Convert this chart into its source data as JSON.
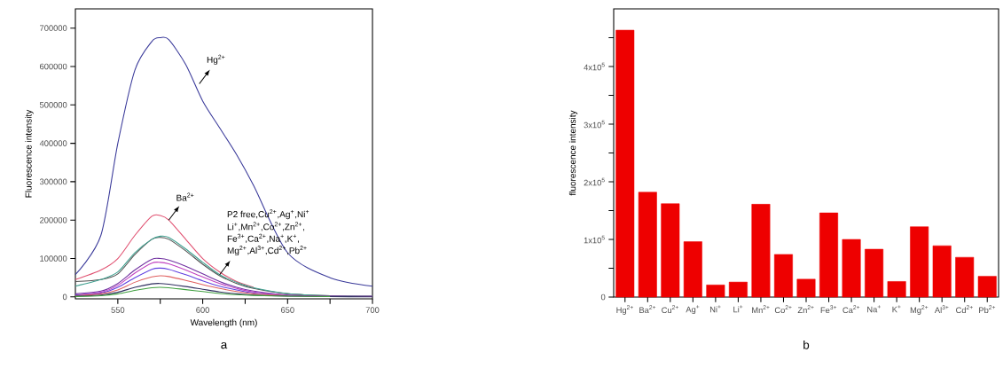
{
  "chart_data": [
    {
      "type": "line",
      "xlabel": "Wavelength (nm)",
      "ylabel": "Fluorescence intensity",
      "x": [
        525,
        540,
        550,
        560,
        570,
        575,
        580,
        590,
        600,
        610,
        620,
        630,
        650,
        675,
        700
      ],
      "xlim": [
        525,
        700
      ],
      "xticks": [
        550,
        {
          "value": 575,
          "label": null
        },
        600,
        {
          "value": 625,
          "label": null
        },
        650,
        {
          "value": 675,
          "label": null
        },
        700
      ],
      "ylim": [
        -5000,
        750000
      ],
      "yticks": [
        0,
        100000,
        200000,
        300000,
        400000,
        500000,
        600000,
        700000
      ],
      "series": [
        {
          "color": "#3a3a9a",
          "values": [
            58000,
            160000,
            400000,
            590000,
            665000,
            675000,
            670000,
            605000,
            510000,
            440000,
            370000,
            290000,
            115000,
            50000,
            28000
          ]
        },
        {
          "color": "#e05070",
          "values": [
            45000,
            70000,
            100000,
            160000,
            210000,
            212000,
            200000,
            150000,
            100000,
            65000,
            40000,
            25000,
            null,
            null,
            null
          ]
        },
        {
          "color": "#505050",
          "values": [
            40000,
            45000,
            60000,
            110000,
            150000,
            155000,
            150000,
            120000,
            85000,
            55000,
            35000,
            22000,
            8000,
            3000,
            2000
          ]
        },
        {
          "color": "#40a090",
          "values": [
            28000,
            45000,
            65000,
            115000,
            150000,
            158000,
            155000,
            125000,
            90000,
            58000,
            38000,
            24000,
            9000,
            3000,
            2000
          ]
        },
        {
          "color": "#7030a0",
          "values": [
            8000,
            15000,
            35000,
            70000,
            98000,
            100000,
            96000,
            80000,
            60000,
            40000,
            25000,
            15000,
            5000,
            2000,
            1000
          ]
        },
        {
          "color": "#c040c0",
          "values": [
            5000,
            12000,
            30000,
            62000,
            88000,
            90000,
            86000,
            70000,
            52000,
            35000,
            22000,
            13000,
            5000,
            2000,
            1000
          ]
        },
        {
          "color": "#6040e0",
          "values": [
            5000,
            10000,
            25000,
            50000,
            72000,
            75000,
            72000,
            58000,
            42000,
            28000,
            18000,
            10000,
            4000,
            null,
            null
          ]
        },
        {
          "color": "#e06060",
          "values": [
            3000,
            8000,
            18000,
            38000,
            52000,
            55000,
            53000,
            43000,
            32000,
            22000,
            14000,
            8000,
            3000,
            null,
            null
          ]
        },
        {
          "color": "#303060",
          "values": [
            2000,
            5000,
            12000,
            25000,
            34000,
            35000,
            33000,
            27000,
            20000,
            13000,
            8000,
            5000,
            2000,
            1000,
            0
          ]
        },
        {
          "color": "#40a040",
          "values": [
            1000,
            3000,
            8000,
            17000,
            24000,
            25000,
            24000,
            19000,
            14000,
            9000,
            6000,
            4000,
            2000,
            1000,
            null
          ]
        }
      ],
      "annotations": [
        {
          "text": "Hg$^{2+}$",
          "x": 598,
          "y": 555000
        },
        {
          "text": "Ba$^{2+}$",
          "x": 580,
          "y": 200000
        },
        "P2 free,Cu$^{2+}$,Ag$^{+}$,Ni$^{+}$",
        "Li$^{+}$,Mn$^{2+}$,Co$^{2+}$,Zn$^{2+}$,",
        "Fe$^{3+}$,Ca$^{2+}$,Na$^{+}$,K$^{+}$,",
        {
          "text": "Mg$^{2+}$,Al$^{3+}$,Cd$^{2+}$,Pb$^{2+}$",
          "x": 610,
          "y": 58000
        },
        "a"
      ]
    },
    {
      "type": "bar",
      "ylabel": "fluorescence intensity",
      "color": "#ee0000",
      "categories": [
        "Hg$^{2+}$",
        "Ba$^{2+}$",
        "Cu$^{2+}$",
        "Ag$^{+}$",
        "Ni$^{+}$",
        "Li$^{+}$",
        "Mn$^{2+}$",
        "Co$^{2+}$",
        "Zn$^{2+}$",
        "Fe$^{3+}$",
        "Ca$^{2+}$",
        "Na$^{+}$",
        "K$^{+}$",
        "Mg$^{2+}$",
        "Al$^{3+}$",
        "Cd$^{2+}$",
        "Pb$^{2+}$"
      ],
      "values": [
        463000,
        182000,
        162000,
        96000,
        21000,
        26000,
        161000,
        74000,
        31000,
        146000,
        100000,
        83000,
        27000,
        122000,
        89000,
        69000,
        36000
      ],
      "ylim": [
        0,
        500000
      ],
      "yticks": [
        0,
        {
          "value": 50000,
          "label": null
        },
        {
          "value": 100000,
          "label": "1x10$^{5}$"
        },
        {
          "value": 150000,
          "label": null
        },
        {
          "value": 200000,
          "label": "2x10$^{5}$"
        },
        {
          "value": 250000,
          "label": null
        },
        {
          "value": 300000,
          "label": "3x10$^{5}$"
        },
        {
          "value": 350000,
          "label": null
        },
        {
          "value": 400000,
          "label": "4x10$^{5}$"
        },
        {
          "value": 450000,
          "label": null
        }
      ],
      "annotations": [
        "b"
      ]
    }
  ]
}
